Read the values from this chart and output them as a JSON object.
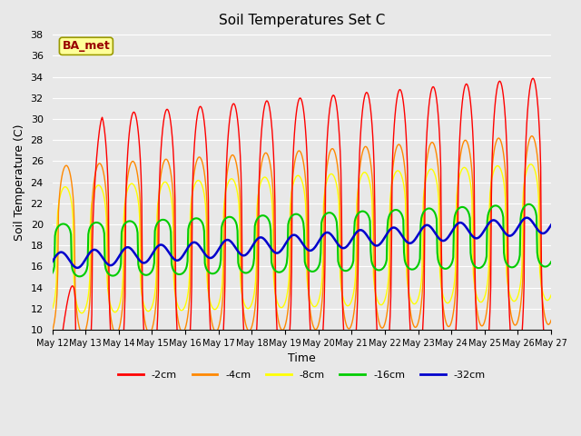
{
  "title": "Soil Temperatures Set C",
  "xlabel": "Time",
  "ylabel": "Soil Temperature (C)",
  "ylim": [
    10,
    38
  ],
  "yticks": [
    10,
    12,
    14,
    16,
    18,
    20,
    22,
    24,
    26,
    28,
    30,
    32,
    34,
    36,
    38
  ],
  "colors": {
    "-2cm": "#ff0000",
    "-4cm": "#ff8800",
    "-8cm": "#ffff00",
    "-16cm": "#00cc00",
    "-32cm": "#0000cc"
  },
  "bg_color": "#e8e8e8",
  "plot_bg": "#e8e8e8",
  "annotation_text": "BA_met",
  "annotation_color": "#990000",
  "annotation_bg": "#ffff99",
  "annotation_border": "#999900",
  "figsize": [
    6.4,
    4.8
  ],
  "dpi": 100
}
